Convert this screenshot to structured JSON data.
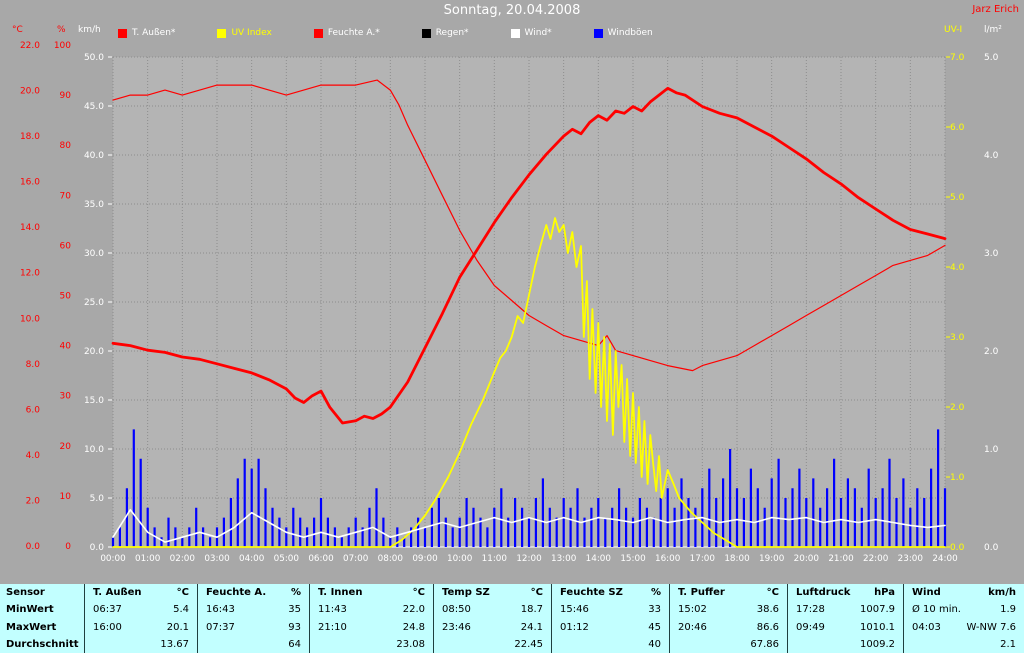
{
  "header": {
    "title": "Sonntag, 20.04.2008",
    "author": "Jarz Erich"
  },
  "legend": {
    "items": [
      {
        "label": "T. Außen*",
        "swatch": "#ff0000",
        "text_color": "#ffffff"
      },
      {
        "label": "UV Index",
        "swatch": "#ffff00",
        "text_color": "#ffff00"
      },
      {
        "label": "Feuchte A.*",
        "swatch": "#ff0000",
        "text_color": "#ffffff"
      },
      {
        "label": "Regen*",
        "swatch": "#000000",
        "text_color": "#ffffff"
      },
      {
        "label": "Wind*",
        "swatch": "#ffffff",
        "text_color": "#ffffff"
      },
      {
        "label": "Windböen",
        "swatch": "#0000ff",
        "text_color": "#ffffff"
      }
    ]
  },
  "axes": {
    "temp": {
      "unit": "°C",
      "color": "#ff0000",
      "ticks": [
        "22.0",
        "20.0",
        "18.0",
        "16.0",
        "14.0",
        "12.0",
        "10.0",
        "8.0",
        "6.0",
        "4.0",
        "2.0",
        "0.0"
      ]
    },
    "humidity": {
      "unit": "%",
      "color": "#ff0000",
      "ticks": [
        "100",
        "90",
        "80",
        "70",
        "60",
        "50",
        "40",
        "30",
        "20",
        "10",
        "0"
      ]
    },
    "wind": {
      "unit": "km/h",
      "color": "#ffffff",
      "ticks": [
        "50.0",
        "45.0",
        "40.0",
        "35.0",
        "30.0",
        "25.0",
        "20.0",
        "15.0",
        "10.0",
        "5.0",
        "0.0"
      ]
    },
    "uv": {
      "unit": "UV-I",
      "color": "#ffff00",
      "ticks": [
        "7.0",
        "6.0",
        "5.0",
        "4.0",
        "3.0",
        "2.0",
        "1.0",
        "0.0"
      ]
    },
    "rain": {
      "unit": "l/m²",
      "color": "#ffffff",
      "ticks": [
        "5.0",
        "4.0",
        "3.0",
        "2.0",
        "1.0",
        "0.0"
      ]
    },
    "time": {
      "ticks": [
        "00:00",
        "01:00",
        "02:00",
        "03:00",
        "04:00",
        "05:00",
        "06:00",
        "07:00",
        "08:00",
        "09:00",
        "10:00",
        "11:00",
        "12:00",
        "13:00",
        "14:00",
        "15:00",
        "16:00",
        "17:00",
        "18:00",
        "19:00",
        "20:00",
        "21:00",
        "22:00",
        "23:00",
        "24:00"
      ]
    }
  },
  "chart_data": {
    "type": "line",
    "title": "Sonntag, 20.04.2008",
    "x_range": [
      0,
      24
    ],
    "axis_ranges": {
      "temp": [
        0,
        22
      ],
      "humidity": [
        0,
        100
      ],
      "wind": [
        0,
        50
      ],
      "uv": [
        0,
        7
      ],
      "rain": [
        0,
        5
      ]
    },
    "grid": true,
    "legend_position": "top",
    "series": [
      {
        "name": "Regen",
        "axis": "rain",
        "color": "#000000",
        "style": "bars",
        "width": 2,
        "x": [
          0,
          24
        ],
        "values": [
          0,
          0
        ]
      },
      {
        "name": "Feuchte A.",
        "axis": "humidity",
        "color": "#ff0000",
        "style": "line",
        "width": 1.2,
        "x": [
          0,
          0.5,
          1,
          1.5,
          2,
          2.5,
          3,
          3.5,
          4,
          4.5,
          5,
          5.5,
          6,
          6.5,
          7,
          7.62,
          8,
          8.25,
          8.5,
          9,
          9.5,
          10,
          10.5,
          11,
          11.5,
          12,
          12.5,
          13,
          13.5,
          14,
          14.25,
          14.5,
          15,
          15.5,
          16,
          16.72,
          17,
          17.5,
          18,
          18.5,
          19,
          19.5,
          20,
          20.5,
          21,
          21.5,
          22,
          22.5,
          23,
          23.5,
          24
        ],
        "values": [
          89,
          90,
          90,
          91,
          90,
          91,
          92,
          92,
          92,
          91,
          90,
          91,
          92,
          92,
          92,
          93,
          91,
          88,
          84,
          77,
          70,
          63,
          57,
          52,
          49,
          46,
          44,
          42,
          41,
          40,
          42,
          39,
          38,
          37,
          36,
          35,
          36,
          37,
          38,
          40,
          42,
          44,
          46,
          48,
          50,
          52,
          54,
          56,
          57,
          58,
          60
        ]
      },
      {
        "name": "T. Außen",
        "axis": "temp",
        "color": "#ff0000",
        "style": "line",
        "width": 2.8,
        "x": [
          0,
          0.5,
          1,
          1.5,
          2,
          2.5,
          3,
          3.5,
          4,
          4.5,
          5,
          5.25,
          5.5,
          5.75,
          6,
          6.25,
          6.62,
          7,
          7.25,
          7.5,
          7.75,
          8,
          8.5,
          9,
          9.5,
          10,
          10.5,
          11,
          11.5,
          12,
          12.5,
          13,
          13.25,
          13.5,
          13.75,
          14,
          14.25,
          14.5,
          14.75,
          15,
          15.25,
          15.5,
          15.75,
          16,
          16.25,
          16.5,
          17,
          17.5,
          18,
          18.5,
          19,
          19.5,
          20,
          20.5,
          21,
          21.5,
          22,
          22.5,
          23,
          23.5,
          24
        ],
        "values": [
          8.9,
          8.8,
          8.6,
          8.5,
          8.3,
          8.2,
          8.0,
          7.8,
          7.6,
          7.3,
          6.9,
          6.5,
          6.3,
          6.6,
          6.8,
          6.1,
          5.4,
          5.5,
          5.7,
          5.6,
          5.8,
          6.1,
          7.2,
          8.7,
          10.2,
          11.8,
          13.0,
          14.2,
          15.3,
          16.3,
          17.2,
          18.0,
          18.3,
          18.1,
          18.6,
          18.9,
          18.7,
          19.1,
          19.0,
          19.3,
          19.1,
          19.5,
          19.8,
          20.1,
          19.9,
          19.8,
          19.3,
          19.0,
          18.8,
          18.4,
          18.0,
          17.5,
          17.0,
          16.4,
          15.9,
          15.3,
          14.8,
          14.3,
          13.9,
          13.7,
          13.5
        ]
      },
      {
        "name": "Windböen",
        "axis": "wind",
        "color": "#0000ff",
        "style": "bars",
        "width": 2.2,
        "x_start": 0,
        "x_step": 0.2,
        "values": [
          1,
          2,
          6,
          12,
          9,
          4,
          2,
          1,
          3,
          2,
          1,
          2,
          4,
          2,
          1,
          2,
          3,
          5,
          7,
          9,
          8,
          9,
          6,
          4,
          3,
          2,
          4,
          3,
          2,
          3,
          5,
          3,
          2,
          1,
          2,
          3,
          2,
          4,
          6,
          3,
          1,
          2,
          1,
          2,
          3,
          2,
          4,
          5,
          3,
          2,
          3,
          5,
          4,
          3,
          2,
          4,
          6,
          3,
          5,
          4,
          3,
          5,
          7,
          4,
          3,
          5,
          4,
          6,
          3,
          4,
          5,
          3,
          4,
          6,
          4,
          3,
          5,
          4,
          3,
          5,
          6,
          4,
          7,
          5,
          4,
          6,
          8,
          5,
          7,
          10,
          6,
          5,
          8,
          6,
          4,
          7,
          9,
          5,
          6,
          8,
          5,
          7,
          4,
          6,
          9,
          5,
          7,
          6,
          4,
          8,
          5,
          6,
          9,
          5,
          7,
          4,
          6,
          5,
          8,
          12,
          6
        ]
      },
      {
        "name": "UV Index",
        "axis": "uv",
        "color": "#ffff00",
        "style": "line",
        "width": 1.8,
        "x": [
          0,
          8,
          8.33,
          8.67,
          9,
          9.33,
          9.67,
          10,
          10.33,
          10.67,
          11,
          11.17,
          11.33,
          11.5,
          11.67,
          11.83,
          12,
          12.17,
          12.33,
          12.5,
          12.62,
          12.75,
          12.87,
          13,
          13.12,
          13.25,
          13.37,
          13.5,
          13.58,
          13.67,
          13.75,
          13.83,
          13.92,
          14,
          14.08,
          14.17,
          14.25,
          14.33,
          14.42,
          14.5,
          14.58,
          14.67,
          14.75,
          14.83,
          14.92,
          15,
          15.08,
          15.17,
          15.25,
          15.33,
          15.42,
          15.5,
          15.58,
          15.67,
          15.75,
          15.83,
          16,
          16.17,
          16.33,
          16.5,
          16.67,
          17,
          17.33,
          17.67,
          18,
          24
        ],
        "values": [
          0,
          0,
          0.1,
          0.25,
          0.45,
          0.7,
          1.0,
          1.35,
          1.75,
          2.1,
          2.5,
          2.7,
          2.8,
          3.0,
          3.3,
          3.2,
          3.6,
          4.0,
          4.3,
          4.6,
          4.4,
          4.7,
          4.5,
          4.6,
          4.2,
          4.5,
          4.0,
          4.3,
          3.0,
          3.8,
          2.4,
          3.4,
          2.2,
          3.2,
          2.0,
          3.0,
          1.8,
          2.9,
          1.6,
          2.8,
          2.0,
          2.6,
          1.5,
          2.4,
          1.3,
          2.2,
          1.2,
          2.0,
          1.0,
          1.8,
          0.9,
          1.6,
          1.2,
          0.8,
          1.3,
          0.7,
          1.1,
          0.9,
          0.7,
          0.6,
          0.5,
          0.35,
          0.2,
          0.1,
          0,
          0
        ]
      },
      {
        "name": "Wind",
        "axis": "wind",
        "color": "#ffffff",
        "style": "line",
        "width": 1.6,
        "x_start": 0,
        "x_step": 0.5,
        "values": [
          1.0,
          3.8,
          1.5,
          0.5,
          1.0,
          1.5,
          1.0,
          2.0,
          3.5,
          2.5,
          1.5,
          1.0,
          1.5,
          1.0,
          1.5,
          2.0,
          1.0,
          1.5,
          2.0,
          2.5,
          2.0,
          2.5,
          3.0,
          2.5,
          3.0,
          2.5,
          3.0,
          2.5,
          3.0,
          2.8,
          2.5,
          3.0,
          2.5,
          2.8,
          3.0,
          2.5,
          2.8,
          2.5,
          3.0,
          2.8,
          3.0,
          2.5,
          2.8,
          2.5,
          2.8,
          2.5,
          2.2,
          2.0,
          2.2
        ]
      }
    ]
  },
  "table": {
    "corner_label": "Sensor",
    "row_labels": [
      "MinWert",
      "MaxWert",
      "Durchschnitt"
    ],
    "columns": [
      {
        "name": "T. Außen",
        "unit": "°C",
        "min": [
          "06:37",
          "5.4"
        ],
        "max": [
          "16:00",
          "20.1"
        ],
        "avg": "13.67"
      },
      {
        "name": "Feuchte A.",
        "unit": "%",
        "min": [
          "16:43",
          "35"
        ],
        "max": [
          "07:37",
          "93"
        ],
        "avg": "64"
      },
      {
        "name": "T. Innen",
        "unit": "°C",
        "min": [
          "11:43",
          "22.0"
        ],
        "max": [
          "21:10",
          "24.8"
        ],
        "avg": "23.08"
      },
      {
        "name": "Temp SZ",
        "unit": "°C",
        "min": [
          "08:50",
          "18.7"
        ],
        "max": [
          "23:46",
          "24.1"
        ],
        "avg": "22.45"
      },
      {
        "name": "Feuchte SZ",
        "unit": "%",
        "min": [
          "15:46",
          "33"
        ],
        "max": [
          "01:12",
          "45"
        ],
        "avg": "40"
      },
      {
        "name": "T. Puffer",
        "unit": "°C",
        "min": [
          "15:02",
          "38.6"
        ],
        "max": [
          "20:46",
          "86.6"
        ],
        "avg": "67.86"
      },
      {
        "name": "Luftdruck",
        "unit": "hPa",
        "min": [
          "17:28",
          "1007.9"
        ],
        "max": [
          "09:49",
          "1010.1"
        ],
        "avg": "1009.2"
      },
      {
        "name": "Wind",
        "unit": "km/h",
        "min": [
          "Ø 10 min.",
          "1.9"
        ],
        "max": [
          "04:03",
          "W-NW 7.6"
        ],
        "avg": "2.1"
      }
    ]
  }
}
